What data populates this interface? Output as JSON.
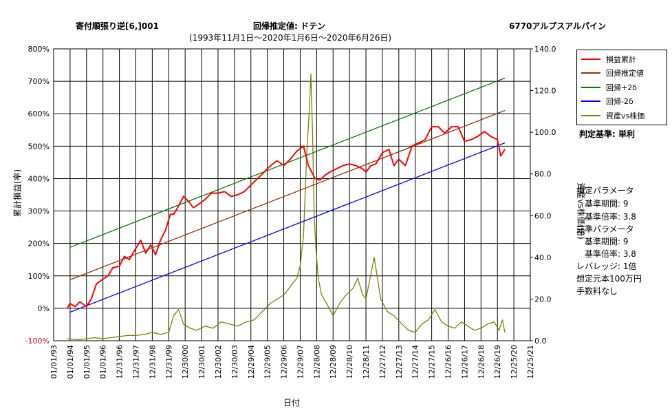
{
  "header": {
    "title_left": "寄付順張り逆[6,]001",
    "title_center": "回帰推定値: ドテン",
    "title_right": "6770アルプスアルパイン",
    "subtitle": "(1993年11月1日～2020年1月6日～2020年6月26日)"
  },
  "axes": {
    "xlabel": "日付",
    "ylabel_left": "累計損益(率)",
    "ylabel_right": "資産vs株価(倍)"
  },
  "legend": {
    "items": [
      {
        "label": "損益累計",
        "color": "#ff0000"
      },
      {
        "label": "回帰推定値",
        "color": "#993300"
      },
      {
        "label": "回帰+2δ",
        "color": "#008000"
      },
      {
        "label": "回帰-2δ",
        "color": "#0000ff"
      },
      {
        "label": "資産vs株価",
        "color": "#808000"
      }
    ]
  },
  "side_panel": {
    "judgement": "判定基準: 単利",
    "lines": [
      "損定パラメータ",
      "　基準期間: 9",
      "　基準倍率: 3.8",
      "益準パラメータ",
      "　基準期間: 9",
      "　基準倍率: 3.8",
      "レバレッジ: 1倍",
      "想定元本100万円",
      "手数料なし"
    ]
  },
  "chart_data": {
    "type": "line",
    "x_tick_labels": [
      "01/01/93",
      "01/01/94",
      "01/01/95",
      "01/01/96",
      "12/31/96",
      "12/31/97",
      "12/31/98",
      "12/31/99",
      "12/30/00",
      "12/30/01",
      "12/30/02",
      "12/30/03",
      "12/29/04",
      "12/29/05",
      "12/29/06",
      "12/29/07",
      "12/28/08",
      "12/28/09",
      "12/28/10",
      "12/28/11",
      "12/27/12",
      "12/27/13",
      "12/27/14",
      "12/27/15",
      "12/26/16",
      "12/26/17",
      "12/26/18",
      "12/26/19",
      "12/25/20",
      "12/25/21"
    ],
    "x_start_year": 1993,
    "x_end_year": 2022,
    "y_left": {
      "min": -100,
      "max": 800,
      "step": 100,
      "tick_labels": [
        "-100%",
        "0%",
        "100%",
        "200%",
        "300%",
        "400%",
        "500%",
        "600%",
        "700%",
        "800%"
      ]
    },
    "y_right": {
      "min": 0,
      "max": 140,
      "step": 20,
      "tick_labels": [
        "0.0",
        "20.0",
        "40.0",
        "60.0",
        "80.0",
        "100.0",
        "120.0",
        "140.0"
      ]
    },
    "series": [
      {
        "name": "損益累計",
        "axis": "left",
        "color": "#ff0000",
        "x": [
          1993.83,
          1994.0,
          1994.3,
          1994.6,
          1995.0,
          1995.3,
          1995.6,
          1996.0,
          1996.3,
          1996.6,
          1997.0,
          1997.3,
          1997.6,
          1998.0,
          1998.3,
          1998.6,
          1998.9,
          1999.2,
          1999.5,
          1999.8,
          2000.1,
          2000.3,
          2000.6,
          2000.9,
          2001.2,
          2001.5,
          2001.8,
          2002.2,
          2002.6,
          2003.0,
          2003.4,
          2003.8,
          2004.2,
          2004.6,
          2005.0,
          2005.4,
          2005.8,
          2006.2,
          2006.6,
          2007.0,
          2007.4,
          2007.8,
          2008.2,
          2008.5,
          2008.7,
          2008.9,
          2009.2,
          2009.5,
          2009.8,
          2010.2,
          2010.6,
          2011.0,
          2011.4,
          2011.8,
          2012.0,
          2012.3,
          2012.6,
          2013.0,
          2013.4,
          2013.7,
          2014.0,
          2014.4,
          2014.8,
          2015.2,
          2015.6,
          2016.0,
          2016.4,
          2016.8,
          2017.2,
          2017.6,
          2018.0,
          2018.4,
          2018.8,
          2019.2,
          2019.6,
          2020.0,
          2020.2,
          2020.45
        ],
        "y": [
          0,
          15,
          5,
          20,
          5,
          30,
          75,
          90,
          100,
          125,
          130,
          160,
          150,
          185,
          210,
          170,
          195,
          165,
          210,
          240,
          290,
          290,
          315,
          345,
          330,
          310,
          320,
          335,
          355,
          355,
          360,
          345,
          350,
          360,
          380,
          400,
          420,
          440,
          455,
          440,
          460,
          485,
          500,
          440,
          420,
          400,
          395,
          410,
          420,
          430,
          440,
          445,
          440,
          430,
          420,
          440,
          445,
          480,
          490,
          440,
          460,
          440,
          500,
          510,
          520,
          560,
          560,
          540,
          560,
          560,
          515,
          520,
          530,
          545,
          530,
          520,
          470,
          490
        ]
      },
      {
        "name": "回帰推定値",
        "axis": "left",
        "color": "#993300",
        "x": [
          1994.0,
          2020.45
        ],
        "y": [
          88,
          610
        ]
      },
      {
        "name": "回帰+2δ",
        "axis": "left",
        "color": "#008000",
        "x": [
          1994.0,
          2020.45
        ],
        "y": [
          188,
          710
        ]
      },
      {
        "name": "回帰-2δ",
        "axis": "left",
        "color": "#0000ff",
        "x": [
          1994.0,
          2020.45
        ],
        "y": [
          -12,
          510
        ]
      },
      {
        "name": "資産vs株価",
        "axis": "right",
        "color": "#808000",
        "x": [
          1993.83,
          1994.5,
          1995.0,
          1995.5,
          1996.0,
          1996.5,
          1997.0,
          1997.5,
          1998.0,
          1998.5,
          1999.0,
          1999.5,
          2000.0,
          2000.3,
          2000.6,
          2000.9,
          2001.3,
          2001.7,
          2002.2,
          2002.7,
          2003.2,
          2003.7,
          2004.2,
          2004.7,
          2005.2,
          2005.7,
          2006.2,
          2006.6,
          2007.0,
          2007.4,
          2007.8,
          2008.0,
          2008.2,
          2008.4,
          2008.55,
          2008.65,
          2008.75,
          2008.85,
          2008.95,
          2009.1,
          2009.3,
          2009.6,
          2010.0,
          2010.4,
          2010.8,
          2011.2,
          2011.5,
          2011.8,
          2012.0,
          2012.2,
          2012.5,
          2012.9,
          2013.3,
          2013.7,
          2014.2,
          2014.6,
          2015.0,
          2015.4,
          2015.8,
          2016.2,
          2016.6,
          2017.0,
          2017.4,
          2017.8,
          2018.2,
          2018.6,
          2019.0,
          2019.4,
          2019.8,
          2020.1,
          2020.3,
          2020.45
        ],
        "y": [
          1,
          0.5,
          1,
          1.5,
          1,
          1.5,
          2,
          2.5,
          2.5,
          3,
          4,
          3,
          4,
          12,
          15,
          8,
          6,
          5,
          7,
          6,
          9,
          8,
          7,
          9,
          10,
          14,
          18,
          20,
          22,
          26,
          30,
          36,
          50,
          90,
          110,
          128,
          100,
          60,
          45,
          30,
          22,
          18,
          12,
          18,
          22,
          25,
          30,
          22,
          20,
          28,
          40,
          20,
          14,
          12,
          8,
          5,
          4,
          8,
          10,
          15,
          9,
          7,
          6,
          9,
          7,
          5,
          6,
          8,
          9,
          5,
          10,
          4
        ]
      }
    ]
  }
}
